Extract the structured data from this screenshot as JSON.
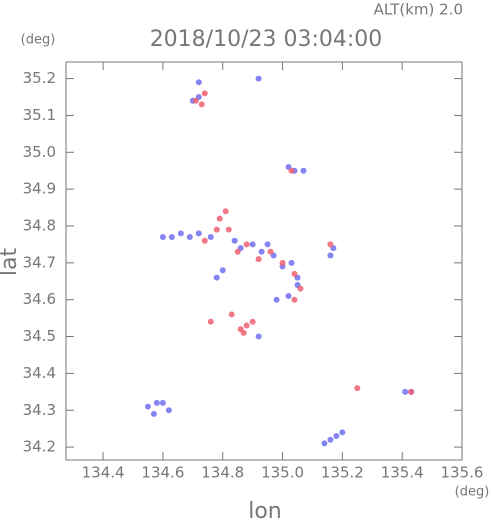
{
  "chart_data": {
    "type": "scatter",
    "title": "2018/10/23 03:04:00",
    "subtitle": "ALT(km) 2.0",
    "x_label": "lon",
    "y_label": "lat",
    "x_unit": "(deg)",
    "y_unit": "(deg)",
    "xlim": [
      134.276,
      135.6
    ],
    "ylim": [
      34.165,
      35.245
    ],
    "xticks": [
      134.4,
      134.6,
      134.8,
      {
        "value": 135,
        "label": "135.0"
      },
      135.2,
      135.4,
      135.6
    ],
    "yticks": [
      34.2,
      34.3,
      34.4,
      34.5,
      34.6,
      34.7,
      34.8,
      34.9,
      {
        "value": 35,
        "label": "35.0"
      },
      35.1,
      35.2
    ],
    "series": [
      {
        "color": "#6f6ff0",
        "x": [
          134.72,
          134.7,
          134.72,
          134.92,
          135.02,
          135.04,
          135.07,
          134.6,
          134.63,
          134.66,
          134.69,
          134.72,
          134.76,
          134.84,
          134.86,
          134.9,
          134.93,
          134.95,
          134.97,
          135.0,
          135.03,
          135.05,
          134.98,
          135.02,
          135.05,
          134.8,
          134.78,
          135.17,
          135.16,
          134.55,
          134.58,
          134.6,
          134.62,
          134.57,
          135.16,
          135.18,
          135.2,
          135.14,
          135.41,
          135.43,
          134.92
        ],
        "y": [
          35.15,
          35.14,
          35.19,
          35.2,
          34.96,
          34.95,
          34.95,
          34.77,
          34.77,
          34.78,
          34.77,
          34.78,
          34.77,
          34.76,
          34.74,
          34.75,
          34.73,
          34.75,
          34.72,
          34.69,
          34.7,
          34.66,
          34.6,
          34.61,
          34.64,
          34.68,
          34.66,
          34.74,
          34.72,
          34.31,
          34.32,
          34.32,
          34.3,
          34.29,
          34.22,
          34.23,
          34.24,
          34.21,
          34.35,
          34.35,
          34.5
        ]
      },
      {
        "color": "#f06070",
        "x": [
          134.71,
          134.73,
          134.74,
          134.79,
          134.81,
          134.78,
          134.74,
          134.82,
          134.85,
          134.88,
          134.92,
          134.96,
          135.0,
          135.04,
          135.06,
          135.04,
          135.16,
          134.76,
          134.83,
          134.86,
          134.88,
          134.9,
          134.87,
          135.25,
          135.43,
          135.03
        ],
        "y": [
          35.14,
          35.13,
          35.16,
          34.82,
          34.84,
          34.79,
          34.76,
          34.79,
          34.73,
          34.75,
          34.71,
          34.73,
          34.7,
          34.67,
          34.63,
          34.6,
          34.75,
          34.54,
          34.56,
          34.52,
          34.53,
          34.54,
          34.51,
          34.36,
          34.35,
          34.95
        ]
      }
    ]
  }
}
